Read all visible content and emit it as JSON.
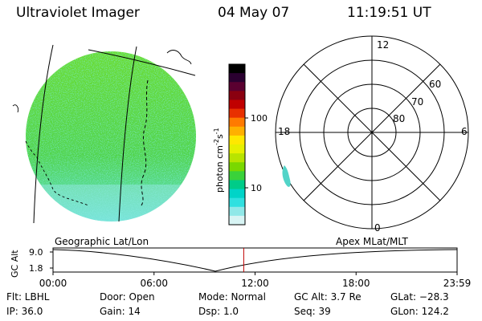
{
  "header": {
    "title": "Ultraviolet Imager",
    "date": "04 May 07",
    "time": "11:19:51 UT"
  },
  "colorbar": {
    "label": "photon cm",
    "label_sup1": "-2",
    "label_mid": "s",
    "label_sup2": "-1",
    "ticks": [
      "100",
      "10"
    ],
    "colors": [
      "#000000",
      "#2a0030",
      "#5a0030",
      "#8a0010",
      "#c00000",
      "#e83000",
      "#ff7a00",
      "#ffb000",
      "#ffe800",
      "#e6f000",
      "#b8e400",
      "#7ad800",
      "#3ad23a",
      "#00cc88",
      "#00d4c8",
      "#30e0e0",
      "#90e8e8",
      "#d8f4f4"
    ]
  },
  "polar": {
    "labels": {
      "top": "12",
      "left": "18",
      "right": "6",
      "bottom": "0"
    },
    "rings": [
      "60",
      "70",
      "80"
    ]
  },
  "timeline": {
    "ylabel": "GC Alt",
    "y_ticks": [
      "9.0",
      "1.8"
    ],
    "left_label": "Geographic Lat/Lon",
    "right_label": "Apex MLat/MLT",
    "x_ticks": [
      "00:00",
      "06:00",
      "12:00",
      "18:00",
      "23:59"
    ],
    "current_time_fraction": 0.4719
  },
  "info": {
    "flt": "Flt: LBHL",
    "ip": "IP: 36.0",
    "door": "Door: Open",
    "gain": "Gain: 14",
    "mode": "Mode: Normal",
    "dsp": "Dsp:    1.0",
    "gcalt": "GC Alt: 3.7 Re",
    "seq": "Seq: 39",
    "glat": "GLat: −28.3",
    "glon": "GLon: 124.2"
  }
}
